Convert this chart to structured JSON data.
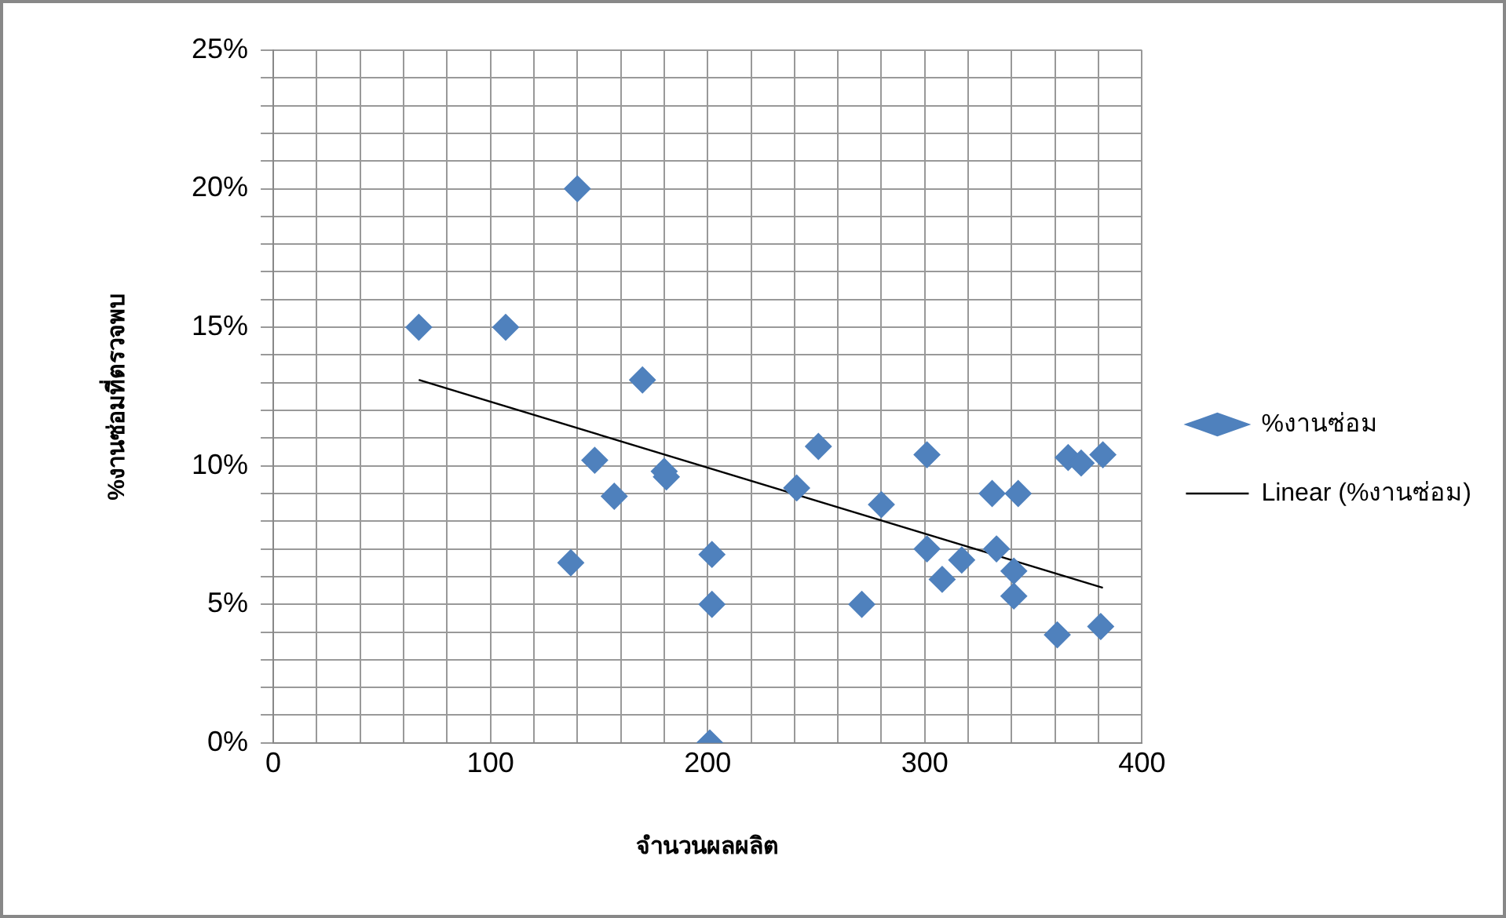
{
  "chart_data": {
    "type": "scatter",
    "xlabel": "จำนวนผลผลิต",
    "ylabel": "%งานซ่อมที่ตรวจพบ",
    "marker": "diamond",
    "grid": true,
    "legend": "right",
    "xlim": [
      0,
      400
    ],
    "xticks": [
      0,
      {
        "value": 20,
        "label": null
      },
      {
        "value": 40,
        "label": null
      },
      {
        "value": 60,
        "label": null
      },
      {
        "value": 80,
        "label": null
      },
      100,
      {
        "value": 120,
        "label": null
      },
      {
        "value": 140,
        "label": null
      },
      {
        "value": 160,
        "label": null
      },
      {
        "value": 180,
        "label": null
      },
      200,
      {
        "value": 220,
        "label": null
      },
      {
        "value": 240,
        "label": null
      },
      {
        "value": 260,
        "label": null
      },
      {
        "value": 280,
        "label": null
      },
      300,
      {
        "value": 320,
        "label": null
      },
      {
        "value": 340,
        "label": null
      },
      {
        "value": 360,
        "label": null
      },
      {
        "value": 380,
        "label": null
      },
      400
    ],
    "ylim": [
      0,
      25
    ],
    "yticks": [
      {
        "value": 0,
        "label": "0%"
      },
      {
        "value": 1,
        "label": null
      },
      {
        "value": 2,
        "label": null
      },
      {
        "value": 3,
        "label": null
      },
      {
        "value": 4,
        "label": null
      },
      {
        "value": 5,
        "label": "5%"
      },
      {
        "value": 6,
        "label": null
      },
      {
        "value": 7,
        "label": null
      },
      {
        "value": 8,
        "label": null
      },
      {
        "value": 9,
        "label": null
      },
      {
        "value": 10,
        "label": "10%"
      },
      {
        "value": 11,
        "label": null
      },
      {
        "value": 12,
        "label": null
      },
      {
        "value": 13,
        "label": null
      },
      {
        "value": 14,
        "label": null
      },
      {
        "value": 15,
        "label": "15%"
      },
      {
        "value": 16,
        "label": null
      },
      {
        "value": 17,
        "label": null
      },
      {
        "value": 18,
        "label": null
      },
      {
        "value": 19,
        "label": null
      },
      {
        "value": 20,
        "label": "20%"
      },
      {
        "value": 21,
        "label": null
      },
      {
        "value": 22,
        "label": null
      },
      {
        "value": 23,
        "label": null
      },
      {
        "value": 24,
        "label": null
      },
      {
        "value": 25,
        "label": "25%"
      }
    ],
    "series": [
      {
        "name": "%งานซ่อม",
        "type": "scatter",
        "color": "#4f81bd",
        "x": [
          67,
          107,
          140,
          170,
          148,
          157,
          137,
          180,
          181,
          202,
          202,
          201,
          241,
          251,
          271,
          280,
          301,
          301,
          308,
          317,
          331,
          343,
          333,
          341,
          341,
          361,
          366,
          372,
          382,
          381
        ],
        "values": [
          15,
          15,
          20,
          13.1,
          10.2,
          8.9,
          6.5,
          9.8,
          9.6,
          6.8,
          5,
          0,
          9.2,
          10.7,
          5,
          8.6,
          10.4,
          7,
          5.9,
          6.6,
          9,
          9,
          7,
          6.2,
          5.3,
          3.9,
          10.3,
          10.1,
          10.4,
          4.2
        ]
      },
      {
        "name": "Linear (%งานซ่อม)",
        "type": "line",
        "marker": "none",
        "color": "#000000",
        "x": [
          67,
          382
        ],
        "values": [
          13.1,
          5.6
        ]
      }
    ]
  }
}
